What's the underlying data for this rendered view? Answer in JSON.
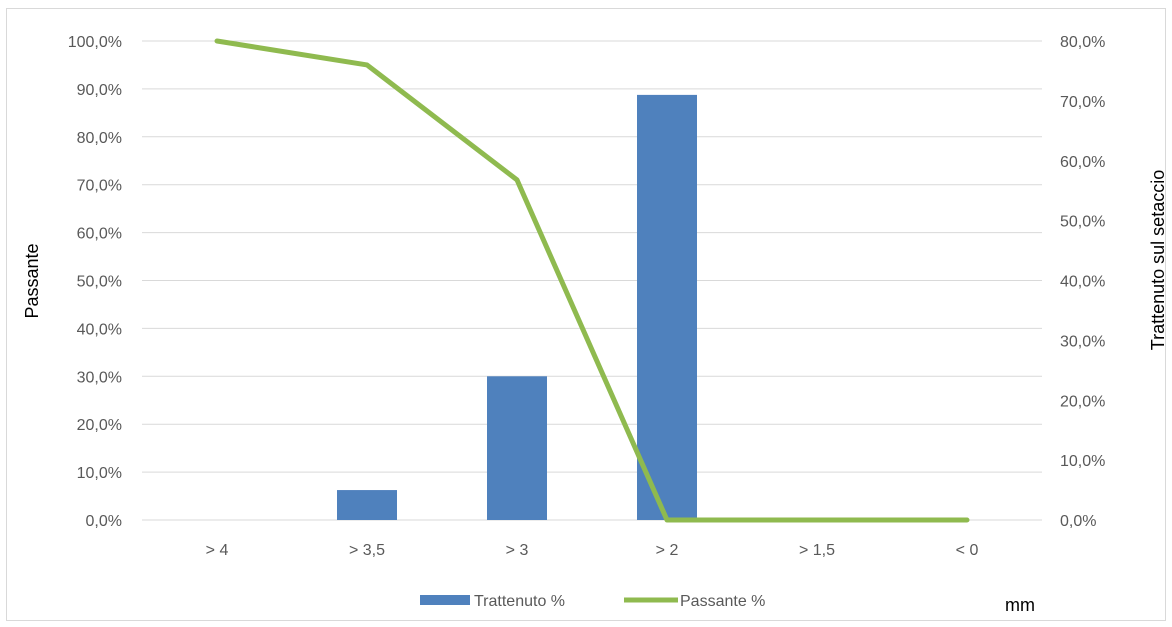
{
  "chart_data": {
    "type": "bar",
    "combo": "bar + line, secondary axis",
    "categories": [
      "> 4",
      "> 3,5",
      "> 3",
      "> 2",
      "> 1,5",
      "< 0"
    ],
    "series": [
      {
        "name": "Trattenuto %",
        "type": "bar",
        "axis": "right",
        "color": "#4f81bd",
        "values": [
          0.0,
          5.0,
          24.0,
          71.0,
          0.0,
          0.0
        ]
      },
      {
        "name": "Passante %",
        "type": "line",
        "axis": "left",
        "color": "#8fba4f",
        "values": [
          100.0,
          95.0,
          71.0,
          0.0,
          0.0,
          0.0
        ]
      }
    ],
    "xlabel": "mm",
    "ylabel": "Passante",
    "y2label": "Trattenuto sul setaccio",
    "ylim": [
      0,
      100
    ],
    "y2lim": [
      0,
      80
    ],
    "yticks": [
      "0,0%",
      "10,0%",
      "20,0%",
      "30,0%",
      "40,0%",
      "50,0%",
      "60,0%",
      "70,0%",
      "80,0%",
      "90,0%",
      "100,0%"
    ],
    "y2ticks": [
      "0,0%",
      "10,0%",
      "20,0%",
      "30,0%",
      "40,0%",
      "50,0%",
      "60,0%",
      "70,0%",
      "80,0%"
    ],
    "grid": true,
    "legend_position": "bottom"
  }
}
